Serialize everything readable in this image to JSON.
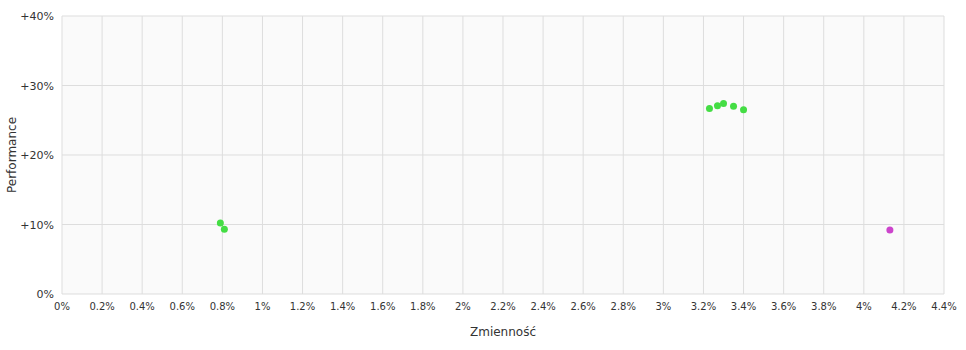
{
  "chart_data": {
    "type": "scatter",
    "xlabel": "Zmienność",
    "ylabel": "Performance",
    "xlim": [
      0.0,
      0.044
    ],
    "ylim": [
      0.0,
      0.4
    ],
    "xticks": [
      {
        "value": 0.0,
        "label": "0%"
      },
      {
        "value": 0.002,
        "label": "0.2%"
      },
      {
        "value": 0.004,
        "label": "0.4%"
      },
      {
        "value": 0.006,
        "label": "0.6%"
      },
      {
        "value": 0.008,
        "label": "0.8%"
      },
      {
        "value": 0.01,
        "label": "1%"
      },
      {
        "value": 0.012,
        "label": "1.2%"
      },
      {
        "value": 0.014,
        "label": "1.4%"
      },
      {
        "value": 0.016,
        "label": "1.6%"
      },
      {
        "value": 0.018,
        "label": "1.8%"
      },
      {
        "value": 0.02,
        "label": "2%"
      },
      {
        "value": 0.022,
        "label": "2.2%"
      },
      {
        "value": 0.024,
        "label": "2.4%"
      },
      {
        "value": 0.026,
        "label": "2.6%"
      },
      {
        "value": 0.028,
        "label": "2.8%"
      },
      {
        "value": 0.03,
        "label": "3%"
      },
      {
        "value": 0.032,
        "label": "3.2%"
      },
      {
        "value": 0.034,
        "label": "3.4%"
      },
      {
        "value": 0.036,
        "label": "3.6%"
      },
      {
        "value": 0.038,
        "label": "3.8%"
      },
      {
        "value": 0.04,
        "label": "4%"
      },
      {
        "value": 0.042,
        "label": "4.2%"
      },
      {
        "value": 0.044,
        "label": "4.4%"
      }
    ],
    "yticks": [
      {
        "value": 0.0,
        "label": "0%"
      },
      {
        "value": 0.1,
        "label": "+10%"
      },
      {
        "value": 0.2,
        "label": "+20%"
      },
      {
        "value": 0.3,
        "label": "+30%"
      },
      {
        "value": 0.4,
        "label": "+40%"
      }
    ],
    "grid": true,
    "series": [
      {
        "color": "#44dd44",
        "x": [
          0.0079,
          0.0081,
          0.0323,
          0.0327,
          0.033,
          0.0335,
          0.034
        ],
        "values": [
          0.102,
          0.093,
          0.267,
          0.271,
          0.274,
          0.27,
          0.265
        ]
      },
      {
        "color": "#cc44cc",
        "x": [
          0.0413
        ],
        "values": [
          0.092
        ]
      }
    ]
  }
}
